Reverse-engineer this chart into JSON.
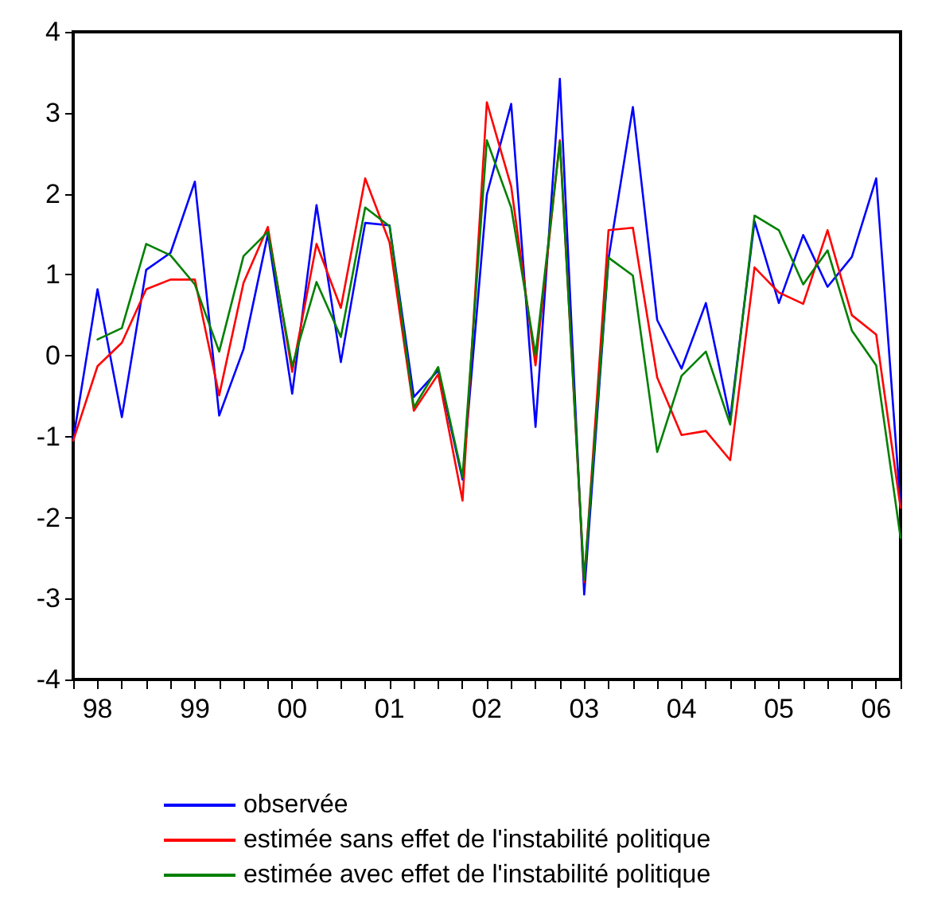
{
  "chart_data": {
    "type": "line",
    "categories": [
      null,
      "98",
      null,
      null,
      null,
      "99",
      null,
      null,
      null,
      "00",
      null,
      null,
      null,
      "01",
      null,
      null,
      null,
      "02",
      null,
      null,
      null,
      "03",
      null,
      null,
      null,
      "04",
      null,
      null,
      null,
      "05",
      null,
      null,
      null,
      "06",
      null
    ],
    "ylim": [
      -4,
      4
    ],
    "yticks": [
      -4,
      -3,
      -2,
      -1,
      0,
      1,
      2,
      3,
      4
    ],
    "grid": false,
    "legend": "bottom",
    "marker": "none",
    "line_style": "solid",
    "series": [
      {
        "name": "observée",
        "color": "#0000ff",
        "values": [
          -1.04,
          0.82,
          -0.76,
          1.06,
          1.27,
          2.15,
          -0.74,
          0.08,
          1.5,
          -0.47,
          1.86,
          -0.08,
          1.64,
          1.61,
          -0.51,
          -0.18,
          -1.53,
          1.99,
          3.11,
          -0.88,
          3.42,
          -2.95,
          1.2,
          3.07,
          0.44,
          -0.16,
          0.65,
          -0.78,
          1.66,
          0.65,
          1.49,
          0.85,
          1.22,
          2.19,
          -1.86
        ]
      },
      {
        "name": "estimée sans effet de l'instabilité politique",
        "color": "#ff0000",
        "values": [
          -1.05,
          -0.13,
          0.16,
          0.82,
          0.94,
          0.94,
          -0.49,
          0.9,
          1.59,
          -0.2,
          1.38,
          0.59,
          2.19,
          1.4,
          -0.68,
          -0.23,
          -1.79,
          3.13,
          2.09,
          -0.12,
          2.66,
          -2.8,
          1.55,
          1.58,
          -0.27,
          -0.98,
          -0.93,
          -1.29,
          1.09,
          0.78,
          0.64,
          1.55,
          0.5,
          0.26,
          -1.88
        ]
      },
      {
        "name": "estimée avec effet de l'instabilité politique",
        "color": "#008000",
        "values": [
          null,
          0.2,
          0.34,
          1.38,
          1.24,
          0.88,
          0.05,
          1.23,
          1.53,
          -0.13,
          0.91,
          0.23,
          1.83,
          1.6,
          -0.64,
          -0.14,
          -1.5,
          2.66,
          1.83,
          0.01,
          2.64,
          -2.77,
          1.21,
          0.99,
          -1.19,
          -0.25,
          0.05,
          -0.85,
          1.73,
          1.55,
          0.88,
          1.3,
          0.31,
          -0.12,
          -2.25
        ]
      }
    ]
  }
}
